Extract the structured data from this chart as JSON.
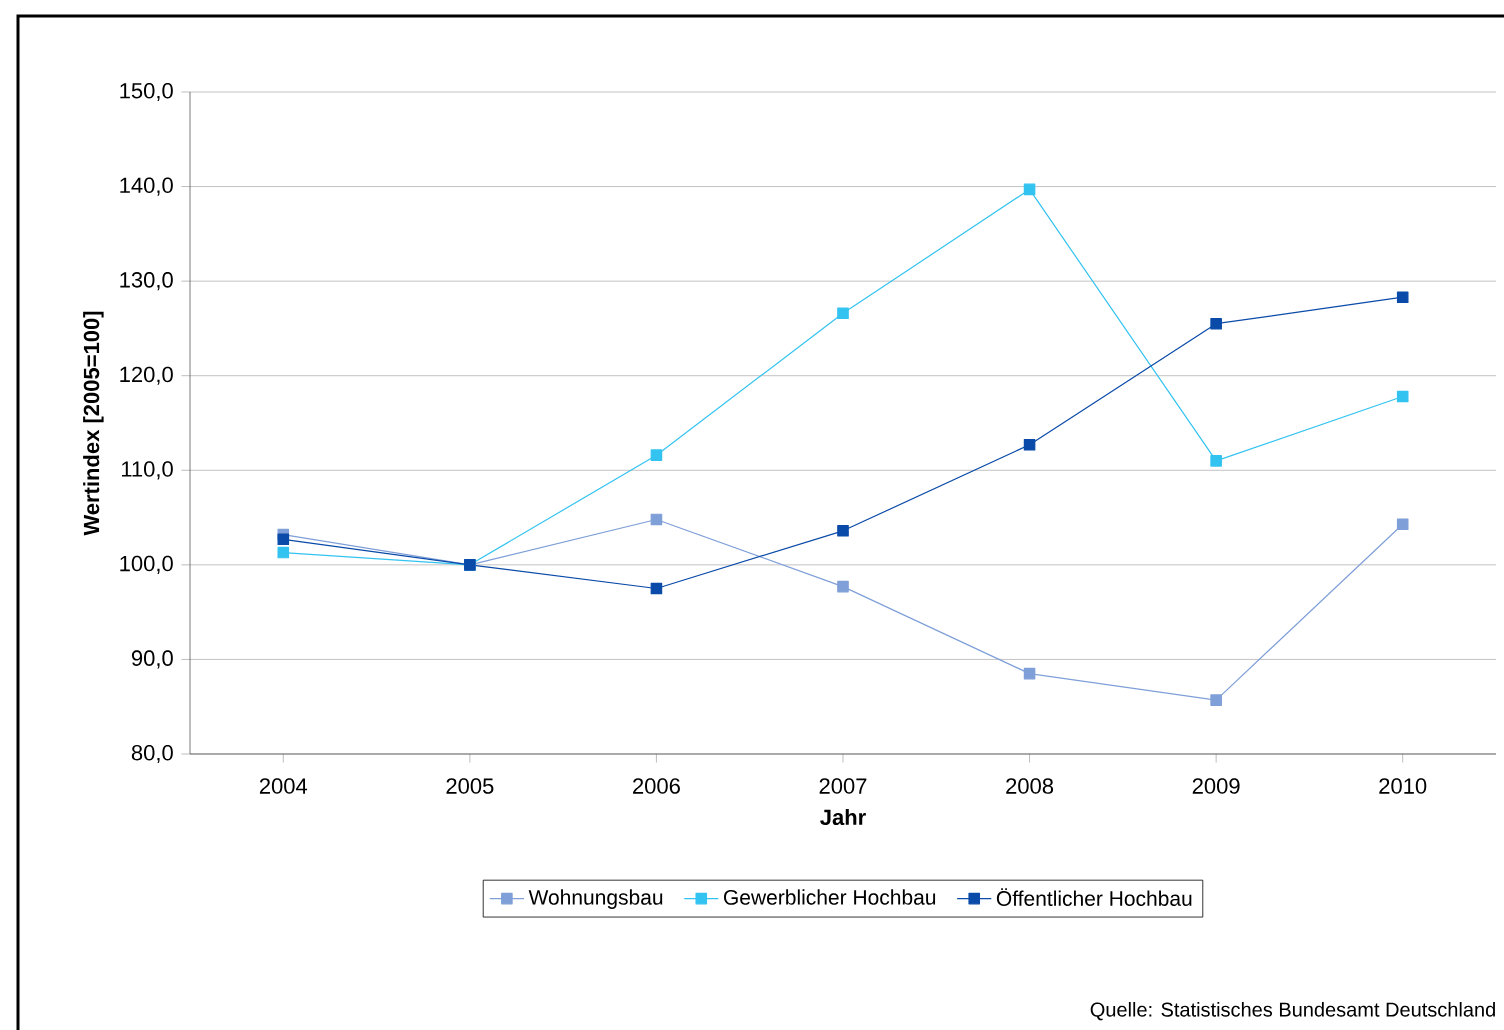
{
  "chart_data": {
    "type": "line",
    "xlabel": "Jahr",
    "ylabel": "Wertindex [2005=100]",
    "categories": [
      "2004",
      "2005",
      "2006",
      "2007",
      "2008",
      "2009",
      "2010"
    ],
    "series": [
      {
        "name": "Wohnungsbau",
        "color": "#7f9fd8",
        "values": [
          103.2,
          100.0,
          104.8,
          97.7,
          88.5,
          85.7,
          104.3
        ]
      },
      {
        "name": "Gewerblicher Hochbau",
        "color": "#33c3f0",
        "values": [
          101.3,
          100.0,
          111.6,
          126.6,
          139.7,
          111.0,
          117.8
        ]
      },
      {
        "name": "Öffentlicher Hochbau",
        "color": "#0a4aa8",
        "values": [
          102.7,
          100.0,
          97.5,
          103.6,
          112.7,
          125.5,
          128.3
        ]
      }
    ],
    "ylim": [
      80,
      150
    ],
    "yticks": [
      {
        "value": 80,
        "label": "80,0"
      },
      {
        "value": 90,
        "label": "90,0"
      },
      {
        "value": 100,
        "label": "100,0"
      },
      {
        "value": 110,
        "label": "110,0"
      },
      {
        "value": 120,
        "label": "120,0"
      },
      {
        "value": 130,
        "label": "130,0"
      },
      {
        "value": 140,
        "label": "140,0"
      },
      {
        "value": 150,
        "label": "150,0"
      }
    ],
    "grid": "y",
    "legend": "bottom",
    "marker": "square",
    "line_style": "solid",
    "annotations": [
      "Quelle: Statistisches Bundesamt Deutschland"
    ]
  }
}
